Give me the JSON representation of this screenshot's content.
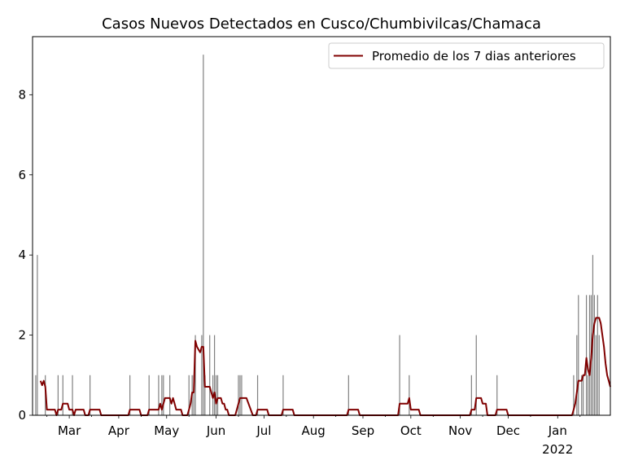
{
  "chart_data": {
    "type": "bar",
    "title": "Casos Nuevos Detectados en Cusco/Chumbivilcas/Chamaca",
    "xlabel": "",
    "ylabel": "",
    "x_range": [
      "2021-02-06",
      "2022-02-03"
    ],
    "ylim": [
      0,
      9.45
    ],
    "grid": false,
    "legend_position": "top-right",
    "x_ticks": [
      {
        "date": "2021-03-01",
        "label": "Mar"
      },
      {
        "date": "2021-04-01",
        "label": "Apr"
      },
      {
        "date": "2021-05-01",
        "label": "May"
      },
      {
        "date": "2021-06-01",
        "label": "Jun"
      },
      {
        "date": "2021-07-01",
        "label": "Jul"
      },
      {
        "date": "2021-08-01",
        "label": "Aug"
      },
      {
        "date": "2021-09-01",
        "label": "Sep"
      },
      {
        "date": "2021-10-01",
        "label": "Oct"
      },
      {
        "date": "2021-11-01",
        "label": "Nov"
      },
      {
        "date": "2021-12-01",
        "label": "Dec"
      },
      {
        "date": "2022-01-01",
        "label": "Jan",
        "sublabel": "2022"
      }
    ],
    "y_ticks": [
      0,
      2,
      4,
      6,
      8
    ],
    "bar_color": "#808080",
    "series": [
      {
        "kind": "bar",
        "dates": [
          "2021-02-08",
          "2021-02-09",
          "2021-02-14",
          "2021-02-22",
          "2021-02-25",
          "2021-03-03",
          "2021-03-14",
          "2021-04-08",
          "2021-04-20",
          "2021-04-26",
          "2021-04-28",
          "2021-04-29",
          "2021-05-03",
          "2021-05-15",
          "2021-05-17",
          "2021-05-18",
          "2021-05-19",
          "2021-05-23",
          "2021-05-24",
          "2021-05-25",
          "2021-05-28",
          "2021-05-30",
          "2021-05-31",
          "2021-06-01",
          "2021-06-02",
          "2021-06-15",
          "2021-06-16",
          "2021-06-17",
          "2021-06-27",
          "2021-07-13",
          "2021-08-23",
          "2021-09-24",
          "2021-09-30",
          "2021-11-08",
          "2021-11-11",
          "2021-11-24",
          "2022-01-11",
          "2022-01-13",
          "2022-01-14",
          "2022-01-16",
          "2022-01-17",
          "2022-01-19",
          "2022-01-20",
          "2022-01-21",
          "2022-01-22",
          "2022-01-23",
          "2022-01-24",
          "2022-01-25",
          "2022-01-26",
          "2022-01-27"
        ],
        "values": [
          1,
          4,
          1,
          1,
          1,
          1,
          1,
          1,
          1,
          1,
          1,
          1,
          1,
          1,
          1,
          1,
          2,
          2,
          9,
          1,
          2,
          1,
          2,
          1,
          1,
          1,
          1,
          1,
          1,
          1,
          1,
          2,
          1,
          1,
          2,
          1,
          1,
          2,
          3,
          1,
          1,
          3,
          1,
          3,
          3,
          4,
          3,
          2,
          3,
          2
        ]
      },
      {
        "kind": "line",
        "name": "Promedio de los 7 dias anteriores",
        "color": "#800000",
        "points": [
          [
            "2021-02-11",
            0.86
          ],
          [
            "2021-02-12",
            0.75
          ],
          [
            "2021-02-13",
            0.86
          ],
          [
            "2021-02-14",
            0.71
          ],
          [
            "2021-02-15",
            0.14
          ],
          [
            "2021-02-20",
            0.14
          ],
          [
            "2021-02-21",
            0.0
          ],
          [
            "2021-02-22",
            0.14
          ],
          [
            "2021-02-24",
            0.14
          ],
          [
            "2021-02-25",
            0.29
          ],
          [
            "2021-02-28",
            0.29
          ],
          [
            "2021-03-01",
            0.14
          ],
          [
            "2021-03-03",
            0.14
          ],
          [
            "2021-03-04",
            0.0
          ],
          [
            "2021-03-05",
            0.14
          ],
          [
            "2021-03-10",
            0.14
          ],
          [
            "2021-03-11",
            0.0
          ],
          [
            "2021-03-13",
            0.0
          ],
          [
            "2021-03-14",
            0.14
          ],
          [
            "2021-03-20",
            0.14
          ],
          [
            "2021-03-21",
            0.0
          ],
          [
            "2021-04-07",
            0.0
          ],
          [
            "2021-04-08",
            0.14
          ],
          [
            "2021-04-14",
            0.14
          ],
          [
            "2021-04-15",
            0.0
          ],
          [
            "2021-04-19",
            0.0
          ],
          [
            "2021-04-20",
            0.14
          ],
          [
            "2021-04-26",
            0.14
          ],
          [
            "2021-04-27",
            0.29
          ],
          [
            "2021-04-28",
            0.14
          ],
          [
            "2021-04-29",
            0.29
          ],
          [
            "2021-04-30",
            0.43
          ],
          [
            "2021-05-03",
            0.43
          ],
          [
            "2021-05-04",
            0.29
          ],
          [
            "2021-05-05",
            0.43
          ],
          [
            "2021-05-06",
            0.29
          ],
          [
            "2021-05-07",
            0.14
          ],
          [
            "2021-05-10",
            0.14
          ],
          [
            "2021-05-11",
            0.0
          ],
          [
            "2021-05-14",
            0.0
          ],
          [
            "2021-05-15",
            0.14
          ],
          [
            "2021-05-16",
            0.29
          ],
          [
            "2021-05-17",
            0.57
          ],
          [
            "2021-05-18",
            0.57
          ],
          [
            "2021-05-19",
            1.86
          ],
          [
            "2021-05-20",
            1.71
          ],
          [
            "2021-05-22",
            1.57
          ],
          [
            "2021-05-23",
            1.71
          ],
          [
            "2021-05-24",
            1.71
          ],
          [
            "2021-05-25",
            0.71
          ],
          [
            "2021-05-28",
            0.71
          ],
          [
            "2021-05-29",
            0.57
          ],
          [
            "2021-05-30",
            0.43
          ],
          [
            "2021-05-31",
            0.57
          ],
          [
            "2021-06-01",
            0.29
          ],
          [
            "2021-06-02",
            0.43
          ],
          [
            "2021-06-04",
            0.43
          ],
          [
            "2021-06-05",
            0.29
          ],
          [
            "2021-06-06",
            0.29
          ],
          [
            "2021-06-07",
            0.14
          ],
          [
            "2021-06-08",
            0.14
          ],
          [
            "2021-06-09",
            0.0
          ],
          [
            "2021-06-13",
            0.0
          ],
          [
            "2021-06-15",
            0.29
          ],
          [
            "2021-06-16",
            0.43
          ],
          [
            "2021-06-20",
            0.43
          ],
          [
            "2021-06-24",
            0.0
          ],
          [
            "2021-06-26",
            0.0
          ],
          [
            "2021-06-27",
            0.14
          ],
          [
            "2021-07-03",
            0.14
          ],
          [
            "2021-07-04",
            0.0
          ],
          [
            "2021-07-12",
            0.0
          ],
          [
            "2021-07-13",
            0.14
          ],
          [
            "2021-07-19",
            0.14
          ],
          [
            "2021-07-20",
            0.0
          ],
          [
            "2021-08-22",
            0.0
          ],
          [
            "2021-08-23",
            0.14
          ],
          [
            "2021-08-29",
            0.14
          ],
          [
            "2021-08-30",
            0.0
          ],
          [
            "2021-09-23",
            0.0
          ],
          [
            "2021-09-24",
            0.29
          ],
          [
            "2021-09-29",
            0.29
          ],
          [
            "2021-09-30",
            0.43
          ],
          [
            "2021-10-01",
            0.14
          ],
          [
            "2021-10-06",
            0.14
          ],
          [
            "2021-10-07",
            0.0
          ],
          [
            "2021-11-07",
            0.0
          ],
          [
            "2021-11-08",
            0.14
          ],
          [
            "2021-11-10",
            0.14
          ],
          [
            "2021-11-11",
            0.43
          ],
          [
            "2021-11-14",
            0.43
          ],
          [
            "2021-11-15",
            0.29
          ],
          [
            "2021-11-17",
            0.29
          ],
          [
            "2021-11-18",
            0.0
          ],
          [
            "2021-11-23",
            0.0
          ],
          [
            "2021-11-24",
            0.14
          ],
          [
            "2021-11-30",
            0.14
          ],
          [
            "2021-12-01",
            0.0
          ],
          [
            "2022-01-10",
            0.0
          ],
          [
            "2022-01-11",
            0.14
          ],
          [
            "2022-01-12",
            0.29
          ],
          [
            "2022-01-13",
            0.57
          ],
          [
            "2022-01-14",
            0.86
          ],
          [
            "2022-01-16",
            0.86
          ],
          [
            "2022-01-17",
            1.0
          ],
          [
            "2022-01-18",
            1.0
          ],
          [
            "2022-01-19",
            1.43
          ],
          [
            "2022-01-20",
            1.14
          ],
          [
            "2022-01-21",
            1.0
          ],
          [
            "2022-01-22",
            1.43
          ],
          [
            "2022-01-23",
            2.0
          ],
          [
            "2022-01-24",
            2.29
          ],
          [
            "2022-01-25",
            2.43
          ],
          [
            "2022-01-26",
            2.43
          ],
          [
            "2022-01-27",
            2.43
          ],
          [
            "2022-01-28",
            2.29
          ],
          [
            "2022-01-29",
            2.0
          ],
          [
            "2022-01-30",
            1.71
          ],
          [
            "2022-01-31",
            1.29
          ],
          [
            "2022-02-01",
            1.0
          ],
          [
            "2022-02-02",
            0.86
          ],
          [
            "2022-02-03",
            0.71
          ]
        ]
      }
    ]
  }
}
